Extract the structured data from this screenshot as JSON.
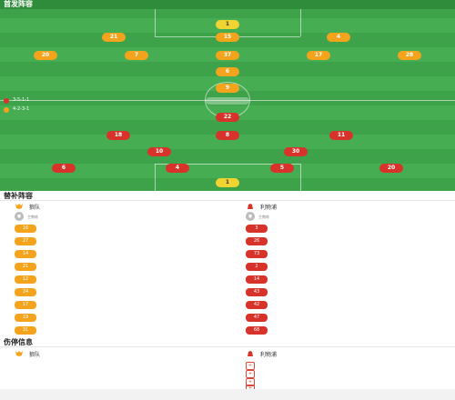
{
  "pitch": {
    "title": "首发阵容",
    "subtitle": "",
    "home_team_label": "",
    "away_team_label": "",
    "home_formation_line1": "3-5-1-1",
    "home_formation_line2": "4-2-3-1",
    "away_formation_line1": "",
    "away_formation_line2": "",
    "center_badge": "",
    "right_top_label": "",
    "home_players": [
      {
        "num": "1",
        "name": "",
        "val": "",
        "rating": "",
        "gk": true
      },
      {
        "num": "21",
        "name": "",
        "val": "",
        "rating": ""
      },
      {
        "num": "15",
        "name": "",
        "val": "",
        "rating": ""
      },
      {
        "num": "4",
        "name": "",
        "val": "",
        "rating": ""
      },
      {
        "num": "20",
        "name": "",
        "val": "",
        "rating": ""
      },
      {
        "num": "7",
        "name": "",
        "val": "",
        "rating": ""
      },
      {
        "num": "37",
        "name": "",
        "val": "",
        "rating": ""
      },
      {
        "num": "17",
        "name": "",
        "val": "",
        "rating": ""
      },
      {
        "num": "28",
        "name": "",
        "val": "",
        "rating": ""
      },
      {
        "num": "6",
        "name": "",
        "val": "",
        "rating": ""
      },
      {
        "num": "9",
        "name": "",
        "val": "",
        "rating": ""
      }
    ],
    "away_players": [
      {
        "num": "22",
        "name": "",
        "val": "",
        "rating": ""
      },
      {
        "num": "18",
        "name": "",
        "val": "",
        "rating": ""
      },
      {
        "num": "8",
        "name": "",
        "val": "",
        "rating": ""
      },
      {
        "num": "11",
        "name": "",
        "val": "",
        "rating": ""
      },
      {
        "num": "10",
        "name": "",
        "val": "",
        "rating": ""
      },
      {
        "num": "30",
        "name": "",
        "val": "",
        "rating": ""
      },
      {
        "num": "6",
        "name": "",
        "val": "",
        "rating": ""
      },
      {
        "num": "4",
        "name": "",
        "val": "",
        "rating": ""
      },
      {
        "num": "5",
        "name": "",
        "val": "",
        "rating": ""
      },
      {
        "num": "20",
        "name": "",
        "val": "",
        "rating": ""
      },
      {
        "num": "1",
        "name": "",
        "val": "",
        "rating": "",
        "gk": true
      }
    ]
  },
  "subs": {
    "title": "替补阵容",
    "home": {
      "team": "狼队",
      "coach_name": "",
      "coach_role": "主教练",
      "players": [
        {
          "num": "16",
          "name": "",
          "pos": "",
          "minute": ""
        },
        {
          "num": "27",
          "name": "",
          "pos": "",
          "minute": ""
        },
        {
          "num": "14",
          "name": "",
          "pos": "",
          "minute": ""
        },
        {
          "num": "21",
          "name": "",
          "pos": "",
          "minute": ""
        },
        {
          "num": "12",
          "name": "",
          "pos": "",
          "minute": ""
        },
        {
          "num": "24",
          "name": "",
          "pos": "",
          "minute": ""
        },
        {
          "num": "17",
          "name": "",
          "pos": "",
          "minute": ""
        },
        {
          "num": "19",
          "name": "",
          "pos": "",
          "minute": ""
        },
        {
          "num": "31",
          "name": "",
          "pos": "",
          "minute": ""
        }
      ]
    },
    "away": {
      "team": "利物浦",
      "coach_name": "",
      "coach_role": "主教练",
      "players": [
        {
          "num": "3",
          "name": "",
          "pos": "",
          "minute": ""
        },
        {
          "num": "26",
          "name": "",
          "pos": "",
          "minute": ""
        },
        {
          "num": "73",
          "name": "",
          "pos": "",
          "minute": ""
        },
        {
          "num": "2",
          "name": "",
          "pos": "",
          "minute": ""
        },
        {
          "num": "14",
          "name": "",
          "pos": "",
          "minute": ""
        },
        {
          "num": "43",
          "name": "",
          "pos": "",
          "minute": ""
        },
        {
          "num": "42",
          "name": "",
          "pos": "",
          "minute": ""
        },
        {
          "num": "47",
          "name": "",
          "pos": "",
          "minute": ""
        },
        {
          "num": "68",
          "name": "",
          "pos": "",
          "minute": ""
        }
      ]
    }
  },
  "injuries": {
    "title": "伤停信息",
    "home": {
      "team": "狼队",
      "players": []
    },
    "away": {
      "team": "利物浦",
      "players": [
        {
          "name": "",
          "status": ""
        },
        {
          "name": "",
          "status": ""
        },
        {
          "name": "",
          "status": ""
        },
        {
          "name": "",
          "status": ""
        }
      ]
    }
  },
  "colors": {
    "pitch": "#3ea24a",
    "home": "#f3a31c",
    "away": "#d8332b",
    "gk": "#f1d332",
    "accent_green": "#2f9a44"
  },
  "icons": {
    "home_logo": "wolf-head-icon",
    "away_logo": "liverbird-icon",
    "injury": "injury-icon",
    "coach": "avatar-icon"
  }
}
